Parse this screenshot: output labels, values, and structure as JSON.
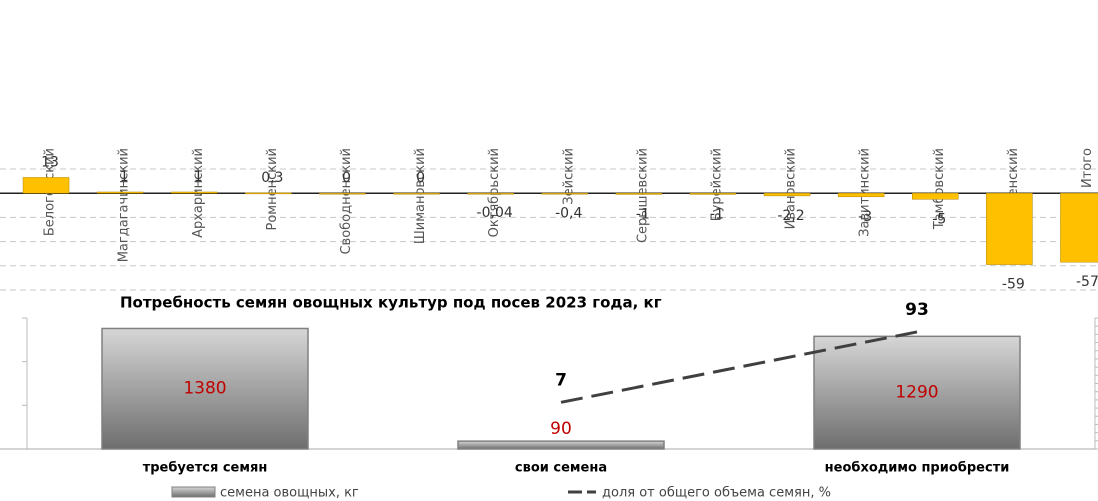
{
  "chart_data": [
    {
      "type": "bar",
      "categories": [
        "Белогорский",
        "Магдагачинский",
        "Архаринский",
        "Ромненский",
        "Свободненский",
        "Шимановский",
        "Октябрьский",
        "Зейский",
        "Серышевский",
        "Бурейский",
        "Ивановский",
        "Завитинский",
        "Тамбовский",
        "Благовещенский",
        "Итого"
      ],
      "values": [
        13,
        1,
        1,
        0.3,
        0,
        0,
        -0.04,
        -0.4,
        -1,
        -1,
        -2.2,
        -3,
        -5,
        -59,
        -57
      ],
      "value_labels": [
        "13",
        "1",
        "1",
        "0,3",
        "0",
        "0",
        "-0,04",
        "-0,4",
        "-1",
        "-1",
        "-2,2",
        "-3",
        "-5",
        "-59",
        "-57"
      ],
      "color": "#ffc000",
      "ylim": [
        -80,
        20
      ],
      "yticks": [
        20,
        0,
        -20,
        -40,
        -60,
        -80
      ],
      "grid": true
    },
    {
      "type": "bar+line",
      "title": "Потребность семян овощных культур под посев  2023 года, кг",
      "categories": [
        "требуется семян",
        "свои семена",
        "необходимо приобрести"
      ],
      "series": [
        {
          "name": "семена овощных, кг",
          "type": "bar",
          "color": "#808080",
          "values": [
            1380,
            90,
            1290
          ]
        },
        {
          "name": "доля от общего объема семян, %",
          "type": "line",
          "color": "#404040",
          "axis": "y2",
          "values": [
            null,
            7,
            93
          ]
        }
      ],
      "ylim": [
        0,
        1500
      ],
      "yticks": [
        0,
        500,
        1000,
        1500
      ],
      "y2lim": [
        -50,
        110
      ],
      "y2ticks": [
        -50,
        -40,
        -30,
        -20,
        -10,
        0,
        10,
        20,
        30,
        40,
        50,
        60,
        70,
        80,
        90,
        100,
        110
      ]
    }
  ]
}
